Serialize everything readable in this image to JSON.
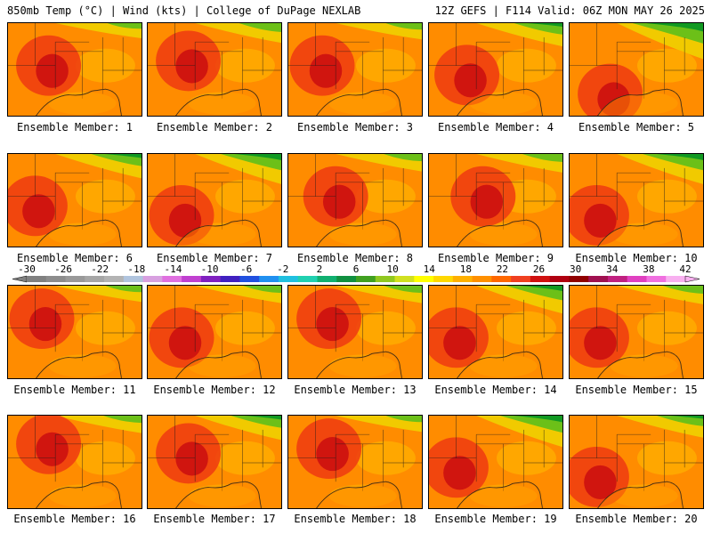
{
  "header": {
    "left": "850mb Temp (°C) | Wind (kts) | College of DuPage NEXLAB",
    "right": "12Z GEFS | F114 Valid: 06Z MON MAY 26 2025"
  },
  "members": [
    {
      "label": "Ensemble Member: 1",
      "hot": [
        0.3,
        0.45
      ],
      "cool": 0.05
    },
    {
      "label": "Ensemble Member: 2",
      "hot": [
        0.3,
        0.4
      ],
      "cool": 0.25
    },
    {
      "label": "Ensemble Member: 3",
      "hot": [
        0.25,
        0.45
      ],
      "cool": 0.1
    },
    {
      "label": "Ensemble Member: 4",
      "hot": [
        0.28,
        0.55
      ],
      "cool": 0.4
    },
    {
      "label": "Ensemble Member: 5",
      "hot": [
        0.3,
        0.75
      ],
      "cool": 0.95
    },
    {
      "label": "Ensemble Member: 6",
      "hot": [
        0.2,
        0.55
      ],
      "cool": 0.45
    },
    {
      "label": "Ensemble Member: 7",
      "hot": [
        0.25,
        0.65
      ],
      "cool": 0.7
    },
    {
      "label": "Ensemble Member: 8",
      "hot": [
        0.35,
        0.45
      ],
      "cool": 0.15
    },
    {
      "label": "Ensemble Member: 9",
      "hot": [
        0.4,
        0.45
      ],
      "cool": 0.2
    },
    {
      "label": "Ensemble Member: 10",
      "hot": [
        0.2,
        0.65
      ],
      "cool": 0.7
    },
    {
      "label": "Ensemble Member: 11",
      "hot": [
        0.25,
        0.35
      ],
      "cool": 0.1
    },
    {
      "label": "Ensemble Member: 12",
      "hot": [
        0.25,
        0.55
      ],
      "cool": 0.15
    },
    {
      "label": "Ensemble Member: 13",
      "hot": [
        0.3,
        0.35
      ],
      "cool": 0.15
    },
    {
      "label": "Ensemble Member: 14",
      "hot": [
        0.2,
        0.55
      ],
      "cool": 0.6
    },
    {
      "label": "Ensemble Member: 15",
      "hot": [
        0.2,
        0.55
      ],
      "cool": 0.2
    },
    {
      "label": "Ensemble Member: 16",
      "hot": [
        0.3,
        0.3
      ],
      "cool": 0.15
    },
    {
      "label": "Ensemble Member: 17",
      "hot": [
        0.3,
        0.4
      ],
      "cool": 0.45
    },
    {
      "label": "Ensemble Member: 18",
      "hot": [
        0.3,
        0.35
      ],
      "cool": 0.1
    },
    {
      "label": "Ensemble Member: 19",
      "hot": [
        0.2,
        0.55
      ],
      "cool": 0.75
    },
    {
      "label": "Ensemble Member: 20",
      "hot": [
        0.2,
        0.65
      ],
      "cool": 0.35
    }
  ],
  "colorbar": {
    "tick_labels": [
      "-30",
      "-26",
      "-22",
      "-18",
      "-14",
      "-10",
      "-6",
      "-2",
      "2",
      "6",
      "10",
      "14",
      "18",
      "22",
      "26",
      "30",
      "34",
      "38",
      "42"
    ],
    "colors": [
      "#808080",
      "#8c8c8c",
      "#999999",
      "#a6a6a6",
      "#b3b3b3",
      "#b0c4de",
      "#d8a0e0",
      "#e070e0",
      "#c040d0",
      "#8020c0",
      "#4020c0",
      "#2050e0",
      "#2090f0",
      "#20c0e0",
      "#20d0b0",
      "#10b070",
      "#109040",
      "#40a020",
      "#90c820",
      "#d0e020",
      "#ffff00",
      "#ffd800",
      "#ffb000",
      "#ff9000",
      "#ff6800",
      "#f04020",
      "#d01010",
      "#b00010",
      "#900000",
      "#a01050",
      "#c02080",
      "#e040c0",
      "#f070e0",
      "#f8b0f0"
    ],
    "palette": {
      "cool": "#119922",
      "cool2": "#6cc018",
      "mild": "#f0d000",
      "warm": "#ffb000",
      "warm2": "#ff8c00",
      "hot": "#ee3a10",
      "hotter": "#cc1010",
      "line": "#1a1a1a"
    }
  }
}
